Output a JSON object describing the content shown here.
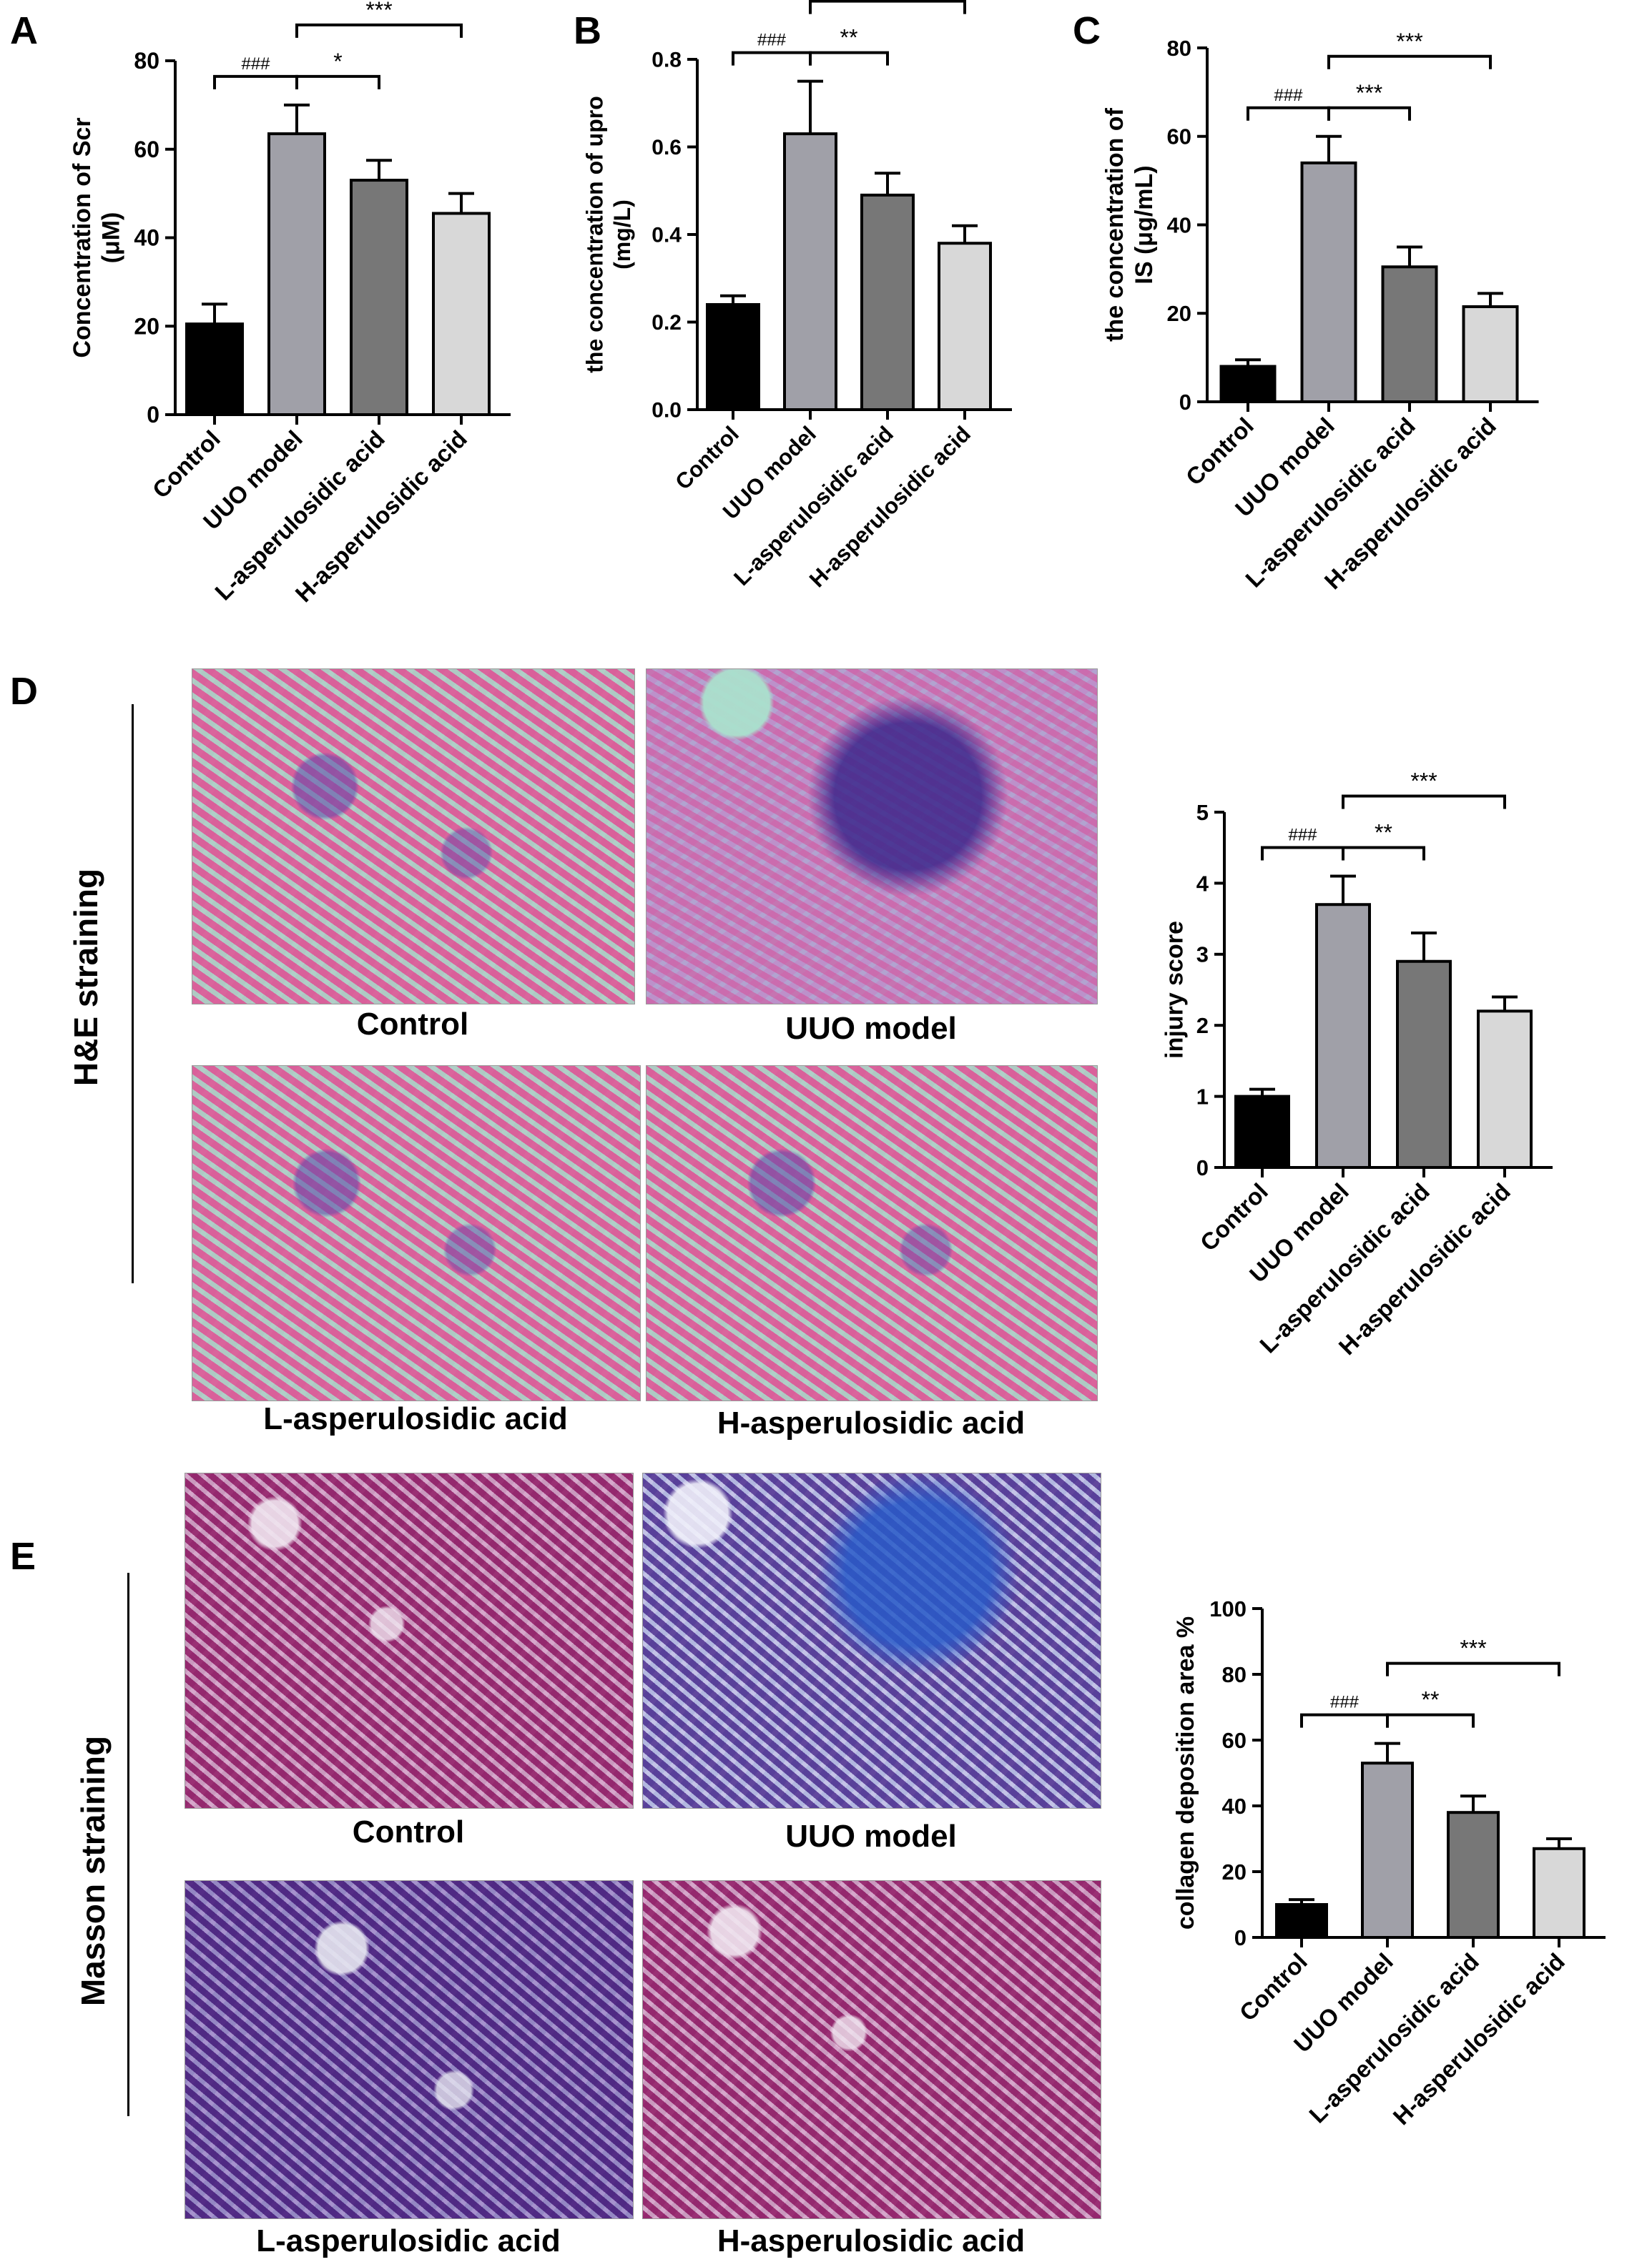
{
  "panel_letters": {
    "a": "A",
    "b": "B",
    "c": "C",
    "d": "D",
    "e": "E"
  },
  "section_labels": {
    "he": "H&E straining",
    "masson": "Masson straining"
  },
  "micrograph_captions": {
    "he_control": "Control",
    "he_uuo": "UUO model",
    "he_l": "L-asperulosidic acid",
    "he_h": "H-asperulosidic acid",
    "masson_control": "Control",
    "masson_uuo": "UUO model",
    "masson_l": "L-asperulosidic acid",
    "masson_h": "H-asperulosidic acid"
  },
  "colors": {
    "control": "#000000",
    "uuo": "#a0a0a8",
    "low": "#777777",
    "high": "#d8d8d8"
  },
  "chart_data": [
    {
      "id": "A",
      "type": "bar",
      "categories": [
        "Control",
        "UUO model",
        "L-asperulosidic acid",
        "H-asperulosidic acid"
      ],
      "values": [
        20.5,
        63.5,
        53,
        45.5
      ],
      "errors": [
        4.5,
        6.5,
        4.5,
        4.5
      ],
      "ylabel": [
        "Concentration of Scr",
        "(μM)"
      ],
      "ylim": [
        0,
        80
      ],
      "yticks": [
        0,
        20,
        40,
        60,
        80
      ],
      "significance": [
        {
          "from": 0,
          "to": 1,
          "label": "###",
          "level": 0
        },
        {
          "from": 1,
          "to": 2,
          "label": "*",
          "level": 0
        },
        {
          "from": 1,
          "to": 3,
          "label": "***",
          "level": 1
        }
      ]
    },
    {
      "id": "B",
      "type": "bar",
      "categories": [
        "Control",
        "UUO model",
        "L-asperulosidic acid",
        "H-asperulosidic acid"
      ],
      "values": [
        0.24,
        0.63,
        0.49,
        0.38
      ],
      "errors": [
        0.02,
        0.12,
        0.05,
        0.04
      ],
      "ylabel": [
        "the concentration of upro",
        "(mg/L)"
      ],
      "ylim": [
        0,
        0.8
      ],
      "yticks": [
        "0.0",
        "0.2",
        "0.4",
        "0.6",
        "0.8"
      ],
      "significance": [
        {
          "from": 0,
          "to": 1,
          "label": "###",
          "level": 0
        },
        {
          "from": 1,
          "to": 2,
          "label": "**",
          "level": 0
        },
        {
          "from": 1,
          "to": 3,
          "label": "***",
          "level": 1
        }
      ]
    },
    {
      "id": "C",
      "type": "bar",
      "categories": [
        "Control",
        "UUO model",
        "L-asperulosidic acid",
        "H-asperulosidic acid"
      ],
      "values": [
        8,
        54,
        30.5,
        21.5
      ],
      "errors": [
        1.5,
        6,
        4.5,
        3
      ],
      "ylabel": [
        "the concentration of",
        "IS (μg/mL)"
      ],
      "ylim": [
        0,
        80
      ],
      "yticks": [
        0,
        20,
        40,
        60,
        80
      ],
      "significance": [
        {
          "from": 0,
          "to": 1,
          "label": "###",
          "level": 0
        },
        {
          "from": 1,
          "to": 2,
          "label": "***",
          "level": 0
        },
        {
          "from": 1,
          "to": 3,
          "label": "***",
          "level": 1
        }
      ]
    },
    {
      "id": "D",
      "type": "bar",
      "categories": [
        "Control",
        "UUO model",
        "L-asperulosidic acid",
        "H-asperulosidic acid"
      ],
      "values": [
        1.0,
        3.7,
        2.9,
        2.2
      ],
      "errors": [
        0.1,
        0.4,
        0.4,
        0.2
      ],
      "ylabel": [
        "injury score"
      ],
      "ylim": [
        0,
        5
      ],
      "yticks": [
        0,
        1,
        2,
        3,
        4,
        5
      ],
      "significance": [
        {
          "from": 0,
          "to": 1,
          "label": "###",
          "level": 0
        },
        {
          "from": 1,
          "to": 2,
          "label": "**",
          "level": 0
        },
        {
          "from": 1,
          "to": 3,
          "label": "***",
          "level": 1
        }
      ]
    },
    {
      "id": "E",
      "type": "bar",
      "categories": [
        "Control",
        "UUO model",
        "L-asperulosidic acid",
        "H-asperulosidic acid"
      ],
      "values": [
        10,
        53,
        38,
        27
      ],
      "errors": [
        1.5,
        6,
        5,
        3
      ],
      "ylabel": [
        "collagen deposition area %"
      ],
      "ylim": [
        0,
        100
      ],
      "yticks": [
        0,
        20,
        40,
        60,
        80,
        100
      ],
      "significance": [
        {
          "from": 0,
          "to": 1,
          "label": "###",
          "level": 0
        },
        {
          "from": 1,
          "to": 2,
          "label": "**",
          "level": 0
        },
        {
          "from": 1,
          "to": 3,
          "label": "***",
          "level": 1
        }
      ]
    }
  ]
}
